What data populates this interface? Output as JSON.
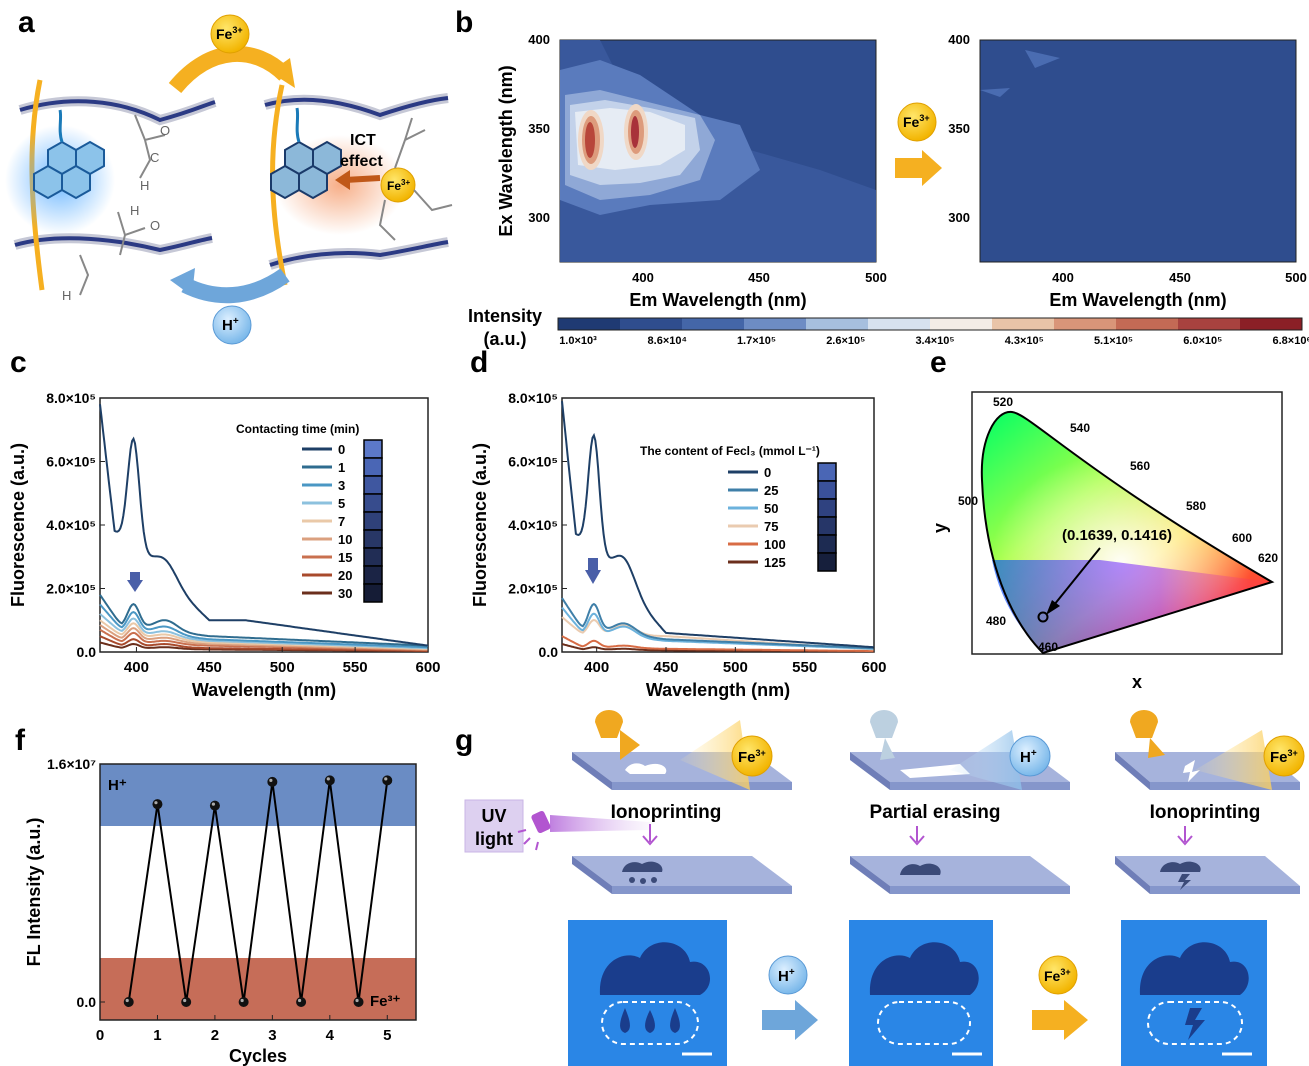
{
  "panel_labels": [
    "a",
    "b",
    "c",
    "d",
    "e",
    "f",
    "g"
  ],
  "panel_a": {
    "ion_top": "Fe",
    "ion_top_sup": "3+",
    "ion_bottom": "H",
    "ion_bottom_sup": "+",
    "ict_line1": "ICT",
    "ict_line2": "effect",
    "bound_ion": "Fe",
    "bound_ion_sup": "3+",
    "group_atoms": [
      "C",
      "O",
      "O",
      "H"
    ]
  },
  "panel_b": {
    "ylabel": "Ex Wavelength (nm)",
    "xlabel_left": "Em Wavelength (nm)",
    "xlabel_right": "Em Wavelength (nm)",
    "yticks": [
      "300",
      "350",
      "400"
    ],
    "xticks": [
      "400",
      "450",
      "500"
    ],
    "arrow_ion": "Fe",
    "arrow_ion_sup": "3+",
    "colorbar_title_line1": "Intensity",
    "colorbar_title_line2": "(a.u.)",
    "colorbar_labels": [
      "1.0×10³",
      "8.6×10⁴",
      "1.7×10⁵",
      "2.6×10⁵",
      "3.4×10⁵",
      "4.3×10⁵",
      "5.1×10⁵",
      "6.0×10⁵",
      "6.8×10⁶"
    ],
    "colorbar_colors": [
      "#1f3a73",
      "#2f4d8e",
      "#4466a8",
      "#6d8cc4",
      "#a6bfde",
      "#d7e2ef",
      "#f3ece6",
      "#e9c4a8",
      "#d99579",
      "#c46a55",
      "#a8423f",
      "#8b1f26"
    ]
  },
  "chart_data": [
    {
      "type": "line",
      "panel": "c",
      "xlabel": "Wavelength (nm)",
      "ylabel": "Fluorescence (a.u.)",
      "xlim": [
        375,
        600
      ],
      "ylim": [
        0,
        800000
      ],
      "xticks": [
        "400",
        "450",
        "500",
        "550",
        "600"
      ],
      "yticks": [
        "0.0",
        "2.0×10⁵",
        "4.0×10⁵",
        "6.0×10⁵",
        "8.0×10⁵"
      ],
      "legend_title": "Contacting time (min)",
      "legend_position": "top-right",
      "series": [
        {
          "name": "0",
          "color": "#1e3f66",
          "peaks": [
            [
              398,
              670000
            ],
            [
              420,
              290000
            ]
          ],
          "base": [
            [
              375,
              780000
            ],
            [
              385,
              380000
            ],
            [
              450,
              100000
            ],
            [
              475,
              100000
            ],
            [
              600,
              20000
            ]
          ]
        },
        {
          "name": "1",
          "color": "#2f6c8f",
          "peaks": [
            [
              398,
              150000
            ],
            [
              420,
              100000
            ]
          ],
          "base": [
            [
              375,
              180000
            ],
            [
              390,
              80000
            ],
            [
              450,
              50000
            ],
            [
              600,
              20000
            ]
          ]
        },
        {
          "name": "3",
          "color": "#4a97c4",
          "peaks": [
            [
              398,
              125000
            ],
            [
              420,
              80000
            ]
          ],
          "base": [
            [
              375,
              150000
            ],
            [
              390,
              70000
            ],
            [
              450,
              40000
            ],
            [
              600,
              15000
            ]
          ]
        },
        {
          "name": "5",
          "color": "#8cc1de",
          "peaks": [
            [
              398,
              105000
            ],
            [
              420,
              65000
            ]
          ],
          "base": [
            [
              375,
              120000
            ],
            [
              390,
              60000
            ],
            [
              450,
              35000
            ],
            [
              600,
              12000
            ]
          ]
        },
        {
          "name": "7",
          "color": "#eac9a8",
          "peaks": [
            [
              398,
              90000
            ],
            [
              420,
              55000
            ]
          ],
          "base": [
            [
              375,
              100000
            ],
            [
              390,
              50000
            ],
            [
              450,
              30000
            ],
            [
              600,
              10000
            ]
          ]
        },
        {
          "name": "10",
          "color": "#dba07f",
          "peaks": [
            [
              398,
              75000
            ],
            [
              420,
              45000
            ]
          ],
          "base": [
            [
              375,
              85000
            ],
            [
              390,
              40000
            ],
            [
              450,
              25000
            ],
            [
              600,
              8000
            ]
          ]
        },
        {
          "name": "15",
          "color": "#c9704f",
          "peaks": [
            [
              398,
              60000
            ],
            [
              420,
              35000
            ]
          ],
          "base": [
            [
              375,
              70000
            ],
            [
              390,
              30000
            ],
            [
              450,
              20000
            ],
            [
              600,
              6000
            ]
          ]
        },
        {
          "name": "20",
          "color": "#a84a2c",
          "peaks": [
            [
              398,
              40000
            ],
            [
              420,
              25000
            ]
          ],
          "base": [
            [
              375,
              50000
            ],
            [
              390,
              20000
            ],
            [
              450,
              12000
            ],
            [
              600,
              4000
            ]
          ]
        },
        {
          "name": "30",
          "color": "#6b2f1c",
          "peaks": [
            [
              398,
              25000
            ],
            [
              420,
              15000
            ]
          ],
          "base": [
            [
              375,
              30000
            ],
            [
              390,
              12000
            ],
            [
              450,
              8000
            ],
            [
              600,
              3000
            ]
          ]
        }
      ],
      "swatches": [
        "#5c79c9",
        "#4a66b5",
        "#3f57a0",
        "#374c8d",
        "#2f4179",
        "#283766",
        "#212d55",
        "#1b2445",
        "#151c36"
      ]
    },
    {
      "type": "line",
      "panel": "d",
      "xlabel": "Wavelength (nm)",
      "ylabel": "Fluorescence (a.u.)",
      "xlim": [
        375,
        600
      ],
      "ylim": [
        0,
        800000
      ],
      "xticks": [
        "400",
        "450",
        "500",
        "550",
        "600"
      ],
      "yticks": [
        "0.0",
        "2.0×10⁵",
        "4.0×10⁵",
        "6.0×10⁵",
        "8.0×10⁵"
      ],
      "legend_title": "The content of Fecl₃ (mmol L⁻¹)",
      "legend_position": "top-right",
      "series": [
        {
          "name": "0",
          "color": "#1e3f66",
          "peaks": [
            [
              398,
              680000
            ],
            [
              420,
              295000
            ]
          ],
          "base": [
            [
              375,
              790000
            ],
            [
              385,
              370000
            ],
            [
              450,
              60000
            ],
            [
              600,
              15000
            ]
          ]
        },
        {
          "name": "25",
          "color": "#3f7fa8",
          "peaks": [
            [
              398,
              150000
            ],
            [
              420,
              90000
            ]
          ],
          "base": [
            [
              375,
              170000
            ],
            [
              390,
              70000
            ],
            [
              450,
              40000
            ],
            [
              600,
              12000
            ]
          ]
        },
        {
          "name": "50",
          "color": "#6cb2dc",
          "peaks": [
            [
              398,
              120000
            ],
            [
              420,
              80000
            ]
          ],
          "base": [
            [
              375,
              140000
            ],
            [
              390,
              60000
            ],
            [
              450,
              35000
            ],
            [
              600,
              10000
            ]
          ]
        },
        {
          "name": "75",
          "color": "#eacbb0",
          "peaks": [
            [
              398,
              100000
            ],
            [
              420,
              85000
            ]
          ],
          "base": [
            [
              375,
              110000
            ],
            [
              390,
              55000
            ],
            [
              450,
              50000
            ],
            [
              600,
              8000
            ]
          ]
        },
        {
          "name": "100",
          "color": "#d86c45",
          "peaks": [
            [
              398,
              35000
            ],
            [
              420,
              20000
            ]
          ],
          "base": [
            [
              375,
              50000
            ],
            [
              390,
              15000
            ],
            [
              450,
              10000
            ],
            [
              600,
              3000
            ]
          ]
        },
        {
          "name": "125",
          "color": "#6b2f1c",
          "peaks": [
            [
              398,
              15000
            ],
            [
              420,
              10000
            ]
          ],
          "base": [
            [
              375,
              25000
            ],
            [
              390,
              8000
            ],
            [
              450,
              5000
            ],
            [
              600,
              2000
            ]
          ]
        }
      ],
      "swatches": [
        "#4a66b5",
        "#3a519a",
        "#2f4280",
        "#263668",
        "#1d2b52",
        "#161f3c"
      ]
    },
    {
      "type": "scatter",
      "panel": "e",
      "xlabel": "x",
      "ylabel": "y",
      "point_label": "(0.1639, 0.1416)",
      "point": [
        0.1639,
        0.1416
      ],
      "locus_labels": [
        "460",
        "480",
        "500",
        "520",
        "540",
        "560",
        "580",
        "600",
        "620"
      ]
    },
    {
      "type": "line",
      "panel": "f",
      "xlabel": "Cycles",
      "ylabel": "FL Intensity (a.u.)",
      "xlim": [
        0,
        5.5
      ],
      "ylim": [
        0,
        16000000
      ],
      "xticks": [
        "0",
        "1",
        "2",
        "3",
        "4",
        "5"
      ],
      "yticks": [
        "0.0",
        "1.6×10⁷"
      ],
      "band_top_label": "H⁺",
      "band_bottom_label": "Fe³⁺",
      "x": [
        0.5,
        1,
        1.5,
        2,
        2.5,
        3,
        3.5,
        4,
        4.5,
        5
      ],
      "y": [
        0,
        13300000,
        0,
        13200000,
        0,
        14800000,
        0,
        14900000,
        0,
        14900000
      ]
    }
  ],
  "panel_g": {
    "uv_line1": "UV",
    "uv_line2": "light",
    "step1": "Ionoprinting",
    "step2": "Partial erasing",
    "step3": "Ionoprinting",
    "ion1": "Fe",
    "ion1_sup": "3+",
    "ion2": "H",
    "ion2_sup": "+",
    "ion3": "Fe",
    "ion3_sup": "3+",
    "arrow1_ion": "H",
    "arrow1_ion_sup": "+",
    "arrow2_ion": "Fe",
    "arrow2_ion_sup": "3+"
  }
}
